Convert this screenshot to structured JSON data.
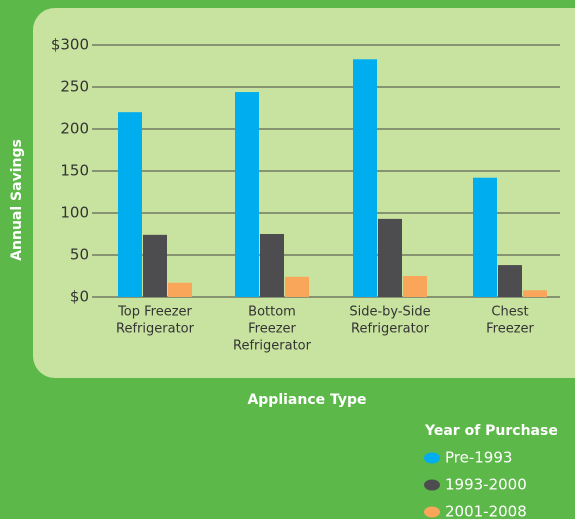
{
  "chart_data": {
    "type": "bar",
    "x_label": "Appliance Type",
    "y_label": "Annual Savings",
    "categories": [
      [
        "Top Freezer",
        "Refrigerator"
      ],
      [
        "Bottom",
        "Freezer",
        "Refrigerator"
      ],
      [
        "Side-by-Side",
        "Refrigerator"
      ],
      [
        "Chest",
        "Freezer"
      ]
    ],
    "series": [
      {
        "name": "Pre-1993",
        "color": "#00aeef",
        "values": [
          220,
          244,
          283,
          142
        ]
      },
      {
        "name": "1993-2000",
        "color": "#4d4d4f",
        "values": [
          74,
          75,
          93,
          38
        ]
      },
      {
        "name": "2001-2008",
        "color": "#f9a65a",
        "values": [
          17,
          24,
          25,
          8
        ]
      }
    ],
    "legend_title": "Year of Purchase",
    "legend": "bottom-right",
    "ylim": [
      0,
      300
    ],
    "yticks": [
      {
        "value": 0,
        "label": "$0"
      },
      50,
      100,
      150,
      200,
      250,
      {
        "value": 300,
        "label": "$300"
      }
    ],
    "grid": true
  }
}
